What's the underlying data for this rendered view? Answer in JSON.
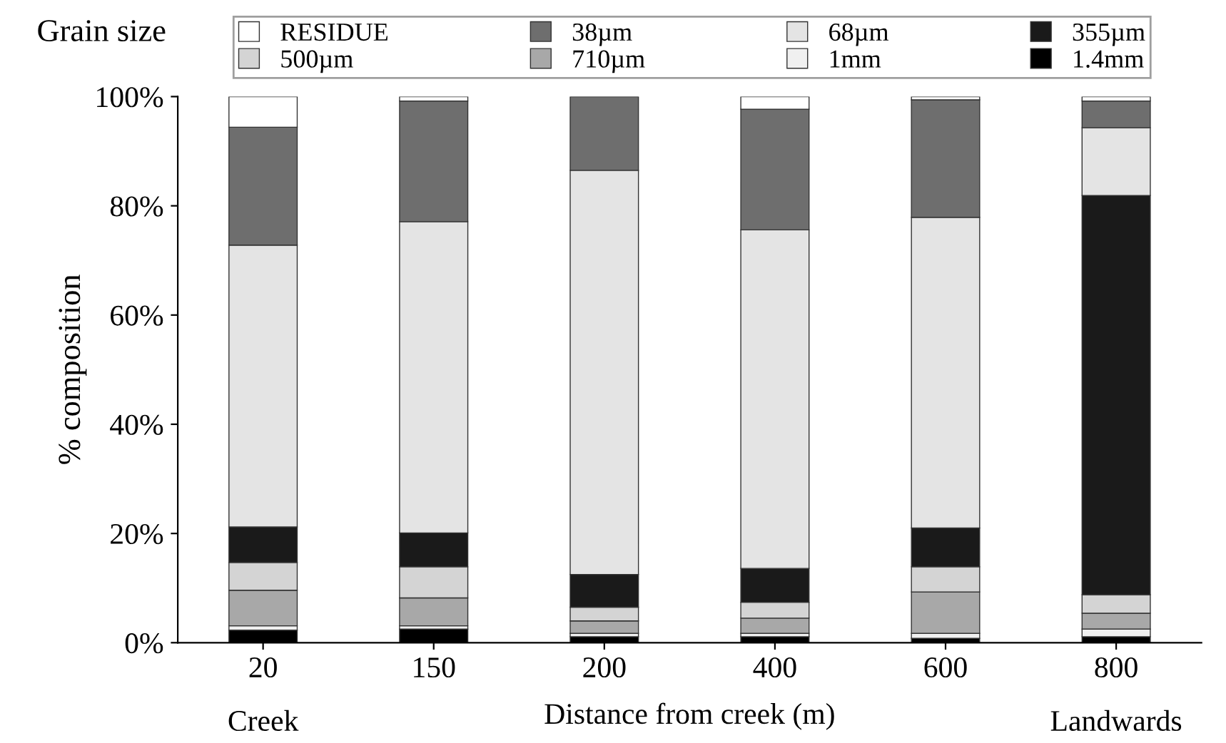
{
  "chart_data": {
    "type": "bar",
    "stacked": true,
    "ylabel": "% composition",
    "xlabel": "Distance from creek (m)",
    "legend_title": "Grain size",
    "categories": [
      "20",
      "150",
      "200",
      "400",
      "600",
      "800"
    ],
    "series": [
      {
        "name": "1.4mm",
        "color": "#000000",
        "values": [
          2.3,
          2.5,
          1.1,
          1.1,
          0.8,
          1.1
        ]
      },
      {
        "name": "1mm",
        "color": "#f0f0f0",
        "values": [
          0.8,
          0.6,
          0.6,
          0.6,
          0.9,
          1.4
        ]
      },
      {
        "name": "710µm",
        "color": "#a8a8a8",
        "values": [
          6.5,
          5.1,
          2.3,
          2.8,
          7.6,
          2.9
        ]
      },
      {
        "name": "500µm",
        "color": "#d4d4d4",
        "values": [
          5.1,
          5.7,
          2.5,
          2.9,
          4.6,
          3.4
        ]
      },
      {
        "name": "355µm",
        "color": "#1a1a1a",
        "values": [
          6.5,
          6.2,
          6.0,
          6.2,
          7.1,
          73.1
        ]
      },
      {
        "name": "68µm",
        "color": "#e4e4e4",
        "values": [
          51.6,
          57.0,
          74.0,
          62.0,
          56.9,
          12.4
        ]
      },
      {
        "name": "38µm",
        "color": "#6e6e6e",
        "values": [
          21.6,
          22.1,
          13.5,
          22.1,
          21.5,
          4.9
        ]
      },
      {
        "name": "RESIDUE",
        "color": "#ffffff",
        "values": [
          5.6,
          0.8,
          null,
          2.3,
          0.6,
          0.8
        ]
      }
    ],
    "ylim": [
      0,
      100
    ],
    "yticks": [
      {
        "value": 0,
        "label": "0%"
      },
      {
        "value": 20,
        "label": "20%"
      },
      {
        "value": 40,
        "label": "40%"
      },
      {
        "value": 60,
        "label": "60%"
      },
      {
        "value": 80,
        "label": "80%"
      },
      {
        "value": 100,
        "label": "100%"
      }
    ],
    "annotations": [
      "Creek",
      "Landwards"
    ],
    "legend": "top",
    "grid": false
  }
}
